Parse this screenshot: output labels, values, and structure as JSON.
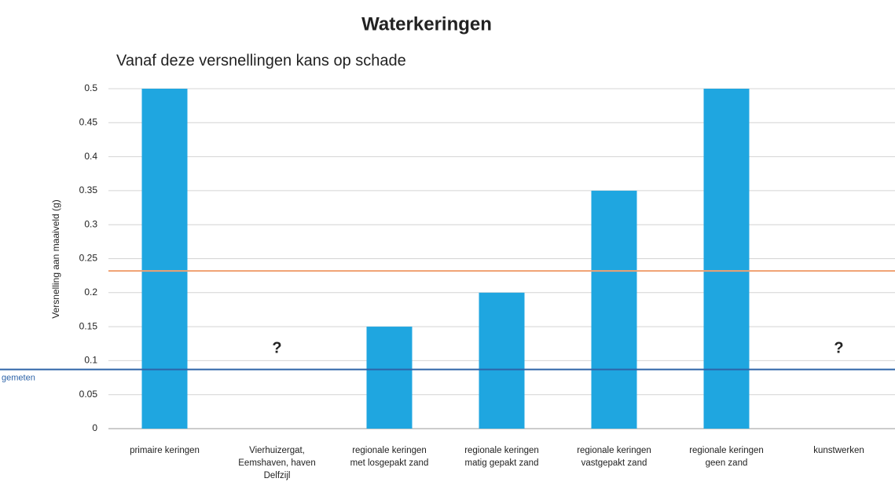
{
  "chart_data": {
    "type": "bar",
    "title": "Waterkeringen",
    "subtitle": "Vanaf deze versnellingen kans op schade",
    "y_label": "Versnelling aan maaiveld (g)",
    "categories": [
      [
        "primaire keringen"
      ],
      [
        "Vierhuizergat,",
        "Eemshaven, haven",
        "Delfzijl"
      ],
      [
        "regionale keringen",
        "met losgepakt zand"
      ],
      [
        "regionale keringen",
        "matig gepakt zand"
      ],
      [
        "regionale keringen",
        "vastgepakt zand"
      ],
      [
        "regionale keringen",
        "geen zand"
      ],
      [
        "kunstwerken"
      ]
    ],
    "values": [
      0.5,
      null,
      0.15,
      0.2,
      0.35,
      0.5,
      null
    ],
    "color": "#1fa6e0",
    "ylim": [
      0,
      0.5
    ],
    "yticks": [
      0,
      0.05,
      0.1,
      0.15,
      0.2,
      0.25,
      0.3,
      0.35,
      0.4,
      0.45,
      0.5
    ],
    "grid": true,
    "annotations": [
      {
        "text": "?",
        "category": 1
      },
      {
        "text": "?",
        "category": 6
      }
    ],
    "reference_lines": [
      {
        "value": 0.232,
        "color": "#f0a070"
      },
      {
        "value": 0.087,
        "color": "#2e64a8",
        "label": "gemeten"
      }
    ]
  }
}
